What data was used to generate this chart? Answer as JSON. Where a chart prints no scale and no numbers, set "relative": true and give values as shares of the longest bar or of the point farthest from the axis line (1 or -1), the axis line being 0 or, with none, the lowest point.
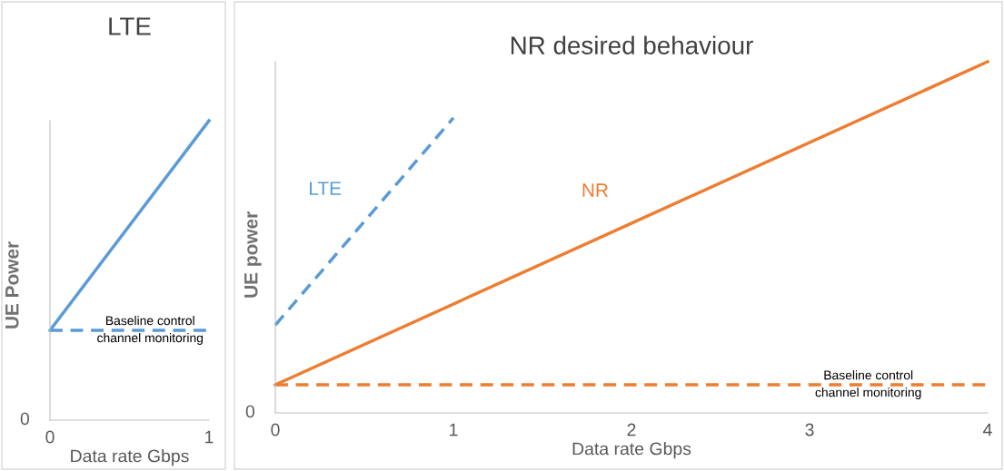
{
  "chart_data": [
    {
      "type": "line",
      "title": "LTE",
      "xlabel": "Data rate Gbps",
      "ylabel": "UE Power",
      "relative": true,
      "xlim": [
        0,
        1
      ],
      "xticks": [
        0,
        1
      ],
      "grid": false,
      "legend": false,
      "marker": "none",
      "series": [
        {
          "color": "#5b9bd5",
          "x": [
            0,
            1
          ],
          "values": [
            0.3,
            1
          ],
          "line_style": "solid"
        },
        {
          "color": "#5b9bd5",
          "x": [
            0,
            1
          ],
          "values": [
            0.3,
            0.3
          ],
          "line_style": "dashed"
        }
      ],
      "annotations": [
        "0",
        {
          "text": "Baseline control\nchannel monitoring",
          "x": 0.63,
          "y": 0.3
        }
      ]
    },
    {
      "type": "line",
      "title": "NR desired behaviour",
      "xlabel": "Data rate Gbps",
      "ylabel": "UE power",
      "relative": true,
      "xlim": [
        0,
        4
      ],
      "xticks": [
        0,
        1,
        2,
        3,
        4
      ],
      "grid": false,
      "legend": false,
      "marker": "none",
      "series": [
        {
          "name": "LTE",
          "color": "#5b9bd5",
          "x": [
            0,
            1
          ],
          "values": [
            0.25,
            0.84
          ],
          "line_style": "dashed"
        },
        {
          "name": "NR",
          "color": "#ed7d31",
          "x": [
            0,
            4
          ],
          "values": [
            0.08,
            1
          ],
          "line_style": "solid"
        },
        {
          "color": "#ed7d31",
          "x": [
            0,
            4
          ],
          "values": [
            0.08,
            0.08
          ],
          "line_style": "dashed"
        }
      ],
      "annotations": [
        "0",
        {
          "text": "Baseline control\nchannel monitoring",
          "x": 3.33,
          "y": 0.08
        }
      ]
    }
  ]
}
